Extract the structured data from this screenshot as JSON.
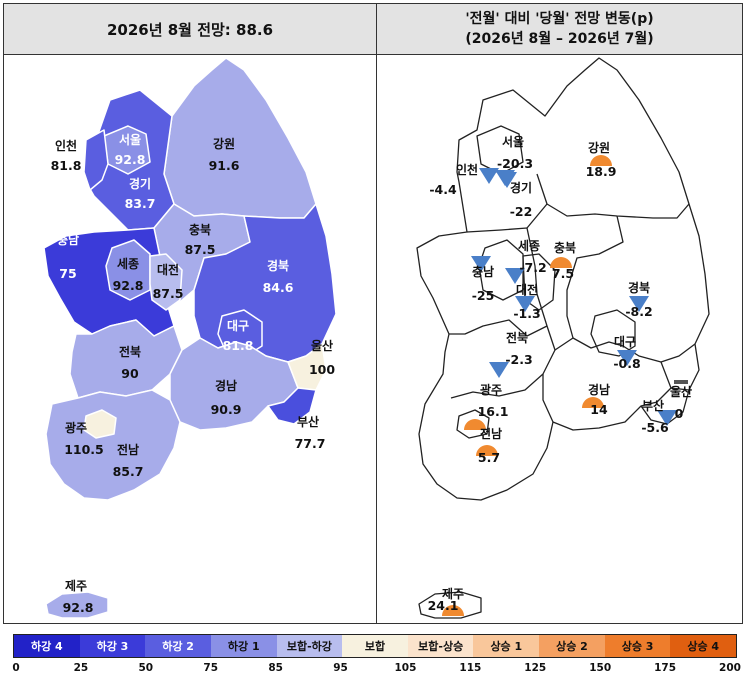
{
  "left_panel": {
    "title": "2026년 8월 전망: 88.6",
    "regions": {
      "incheon": {
        "name": "인천",
        "value": "81.8"
      },
      "seoul": {
        "name": "서울",
        "value": "92.8"
      },
      "gyeonggi": {
        "name": "경기",
        "value": "83.7"
      },
      "gangwon": {
        "name": "강원",
        "value": "91.6"
      },
      "chungbuk": {
        "name": "충북",
        "value": "87.5"
      },
      "chungnam": {
        "name": "충남",
        "value": "75"
      },
      "sejong": {
        "name": "세종",
        "value": "92.8"
      },
      "daejeon": {
        "name": "대전",
        "value": "87.5"
      },
      "gyeongbuk": {
        "name": "경북",
        "value": "84.6"
      },
      "daegu": {
        "name": "대구",
        "value": "81.8"
      },
      "ulsan": {
        "name": "울산",
        "value": "100"
      },
      "jeonbuk": {
        "name": "전북",
        "value": "90"
      },
      "gyeongnam": {
        "name": "경남",
        "value": "90.9"
      },
      "busan": {
        "name": "부산",
        "value": "77.7"
      },
      "gwangju": {
        "name": "광주",
        "value": "110.5"
      },
      "jeonnam": {
        "name": "전남",
        "value": "85.7"
      },
      "jeju": {
        "name": "제주",
        "value": "92.8"
      }
    }
  },
  "right_panel": {
    "title_line1": "'전월' 대비 '당월' 전망 변동(p)",
    "title_line2": "(2026년 8월 – 2026년 7월)",
    "regions": {
      "seoul": {
        "name": "서울",
        "value": "-20.3",
        "direction": "down"
      },
      "incheon": {
        "name": "인천",
        "value": "-4.4",
        "direction": "down"
      },
      "gyeonggi": {
        "name": "경기",
        "value": "-22",
        "direction": "down"
      },
      "gangwon": {
        "name": "강원",
        "value": "18.9",
        "direction": "up"
      },
      "sejong": {
        "name": "세종",
        "value": "-7.2",
        "direction": "down"
      },
      "chungbuk": {
        "name": "충북",
        "value": "7.5",
        "direction": "up"
      },
      "chungnam": {
        "name": "충남",
        "value": "-25",
        "direction": "down"
      },
      "daejeon": {
        "name": "대전",
        "value": "-1.3",
        "direction": "down"
      },
      "gyeongbuk": {
        "name": "경북",
        "value": "-8.2",
        "direction": "down"
      },
      "jeonbuk": {
        "name": "전북",
        "value": "-2.3",
        "direction": "down"
      },
      "daegu": {
        "name": "대구",
        "value": "-0.8",
        "direction": "down"
      },
      "ulsan": {
        "name": "울산",
        "value": "0",
        "direction": "flat"
      },
      "gwangju": {
        "name": "광주",
        "value": "16.1",
        "direction": "up"
      },
      "gyeongnam": {
        "name": "경남",
        "value": "14",
        "direction": "up"
      },
      "busan": {
        "name": "부산",
        "value": "-5.6",
        "direction": "down"
      },
      "jeonnam": {
        "name": "전남",
        "value": "5.7",
        "direction": "up"
      },
      "jeju": {
        "name": "제주",
        "value": "24.1",
        "direction": "up"
      }
    }
  },
  "legend": {
    "categories": [
      {
        "label": "하강 4",
        "color": "#2222c8",
        "text_color": "#ffffff"
      },
      {
        "label": "하강 3",
        "color": "#3b3bd9",
        "text_color": "#ffffff"
      },
      {
        "label": "하강 2",
        "color": "#5a5ee0",
        "text_color": "#ffffff"
      },
      {
        "label": "하강 1",
        "color": "#8a90e6",
        "text_color": "#111111"
      },
      {
        "label": "보합-하강",
        "color": "#b8bdee",
        "text_color": "#111111"
      },
      {
        "label": "보합",
        "color": "#f7f1df",
        "text_color": "#111111"
      },
      {
        "label": "보합-상승",
        "color": "#fbe3cc",
        "text_color": "#111111"
      },
      {
        "label": "상승 1",
        "color": "#f9c79b",
        "text_color": "#111111"
      },
      {
        "label": "상승 2",
        "color": "#f4a061",
        "text_color": "#111111"
      },
      {
        "label": "상승 3",
        "color": "#ee7d2c",
        "text_color": "#111111"
      },
      {
        "label": "상승 4",
        "color": "#e05f10",
        "text_color": "#111111"
      }
    ],
    "ticks": [
      "0",
      "25",
      "50",
      "75",
      "85",
      "95",
      "105",
      "115",
      "125",
      "150",
      "175",
      "200"
    ]
  },
  "colors": {
    "region_fill": {
      "incheon": "#5a5ee0",
      "seoul": "#8a90e6",
      "gyeonggi": "#5a5ee0",
      "gangwon": "#a7acea",
      "chungbuk": "#a7acea",
      "chungnam": "#3b3bd9",
      "sejong": "#8a90e6",
      "daejeon": "#b8bdee",
      "gyeongbuk": "#5a5ee0",
      "daegu": "#5a5ee0",
      "ulsan": "#f7f1df",
      "jeonbuk": "#a7acea",
      "gyeongnam": "#a7acea",
      "busan": "#4a4fdd",
      "gwangju": "#f7f1df",
      "jeonnam": "#a7acea",
      "jeju": "#a7acea"
    },
    "arrow_down": "#4a7fc8",
    "arrow_up": "#f08a30"
  }
}
